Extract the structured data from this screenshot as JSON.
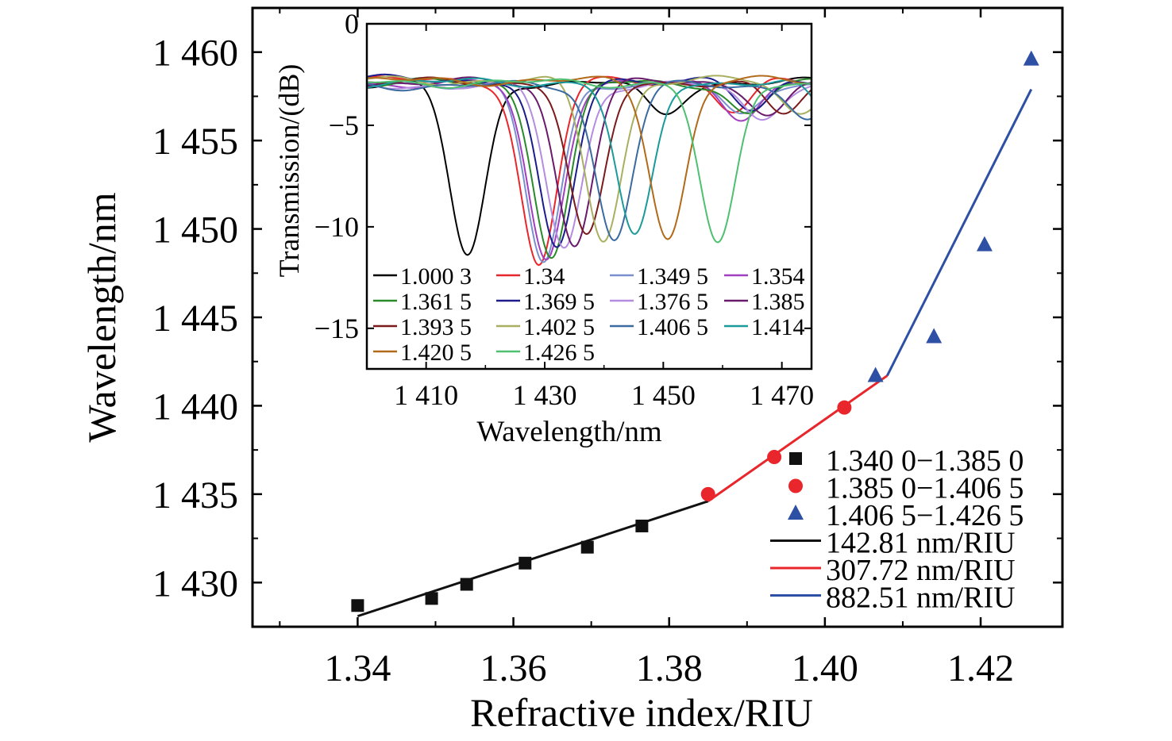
{
  "chart_data": [
    {
      "type": "scatter",
      "xlabel": "Refractive index/RIU",
      "ylabel": "Wavelength/nm",
      "xlim": [
        1.3265,
        1.4305
      ],
      "ylim": [
        1427.5,
        1462.5
      ],
      "xticks": [
        1.34,
        1.36,
        1.38,
        1.4,
        1.42
      ],
      "xtick_labels": [
        "1.34",
        "1.36",
        "1.38",
        "1.40",
        "1.42"
      ],
      "yticks": [
        1430,
        1435,
        1440,
        1445,
        1450,
        1455,
        1460
      ],
      "ytick_labels": [
        "1 430",
        "1 435",
        "1 440",
        "1 445",
        "1 450",
        "1 455",
        "1 460"
      ],
      "legend_position": "bottom-right",
      "series": [
        {
          "name": "1.340 0−1.385 0",
          "marker": "square",
          "color": "#111111",
          "x": [
            1.34,
            1.3495,
            1.354,
            1.3615,
            1.3695,
            1.3765
          ],
          "y": [
            1428.7,
            1429.1,
            1429.9,
            1431.1,
            1432.0,
            1433.2
          ]
        },
        {
          "name": "1.385 0−1.406 5",
          "marker": "circle",
          "color": "#e8262b",
          "x": [
            1.385,
            1.3935,
            1.4025
          ],
          "y": [
            1435.0,
            1437.1,
            1439.9
          ]
        },
        {
          "name": "1.406 5−1.426 5",
          "marker": "triangle",
          "color": "#2d50a5",
          "x": [
            1.4065,
            1.414,
            1.4205,
            1.4265
          ],
          "y": [
            1441.7,
            1443.9,
            1449.1,
            1459.6
          ]
        }
      ],
      "fits": [
        {
          "name": "142.81 nm/RIU",
          "color": "#111111",
          "x": [
            1.34,
            1.385
          ],
          "y": [
            1428.1,
            1434.6
          ]
        },
        {
          "name": "307.72 nm/RIU",
          "color": "#e8262b",
          "x": [
            1.385,
            1.408
          ],
          "y": [
            1434.6,
            1441.7
          ]
        },
        {
          "name": "882.51 nm/RIU",
          "color": "#2d50a5",
          "x": [
            1.408,
            1.4265
          ],
          "y": [
            1441.7,
            1457.9
          ]
        }
      ]
    },
    {
      "type": "line",
      "xlabel": "Wavelength/nm",
      "ylabel": "Transmission/(dB)",
      "xlim": [
        1400,
        1475
      ],
      "ylim": [
        -17,
        0
      ],
      "xticks": [
        1410,
        1430,
        1450,
        1470
      ],
      "xtick_labels": [
        "1 410",
        "1 430",
        "1 450",
        "1 470"
      ],
      "yticks": [
        0,
        -5,
        -10,
        -15
      ],
      "ytick_labels": [
        "0",
        "−5",
        "−10",
        "−15"
      ],
      "legend_position": "bottom",
      "series": [
        {
          "name": "1.000 3",
          "color": "#000000",
          "dip_wavelength": 1417,
          "dip_depth": -11.5
        },
        {
          "name": "1.34",
          "color": "#e8262b",
          "dip_wavelength": 1429,
          "dip_depth": -12.0
        },
        {
          "name": "1.349 5",
          "color": "#7b8fcf",
          "dip_wavelength": 1429.8,
          "dip_depth": -11.8
        },
        {
          "name": "1.354",
          "color": "#a040c0",
          "dip_wavelength": 1430.2,
          "dip_depth": -11.6
        },
        {
          "name": "1.361 5",
          "color": "#2a8a2a",
          "dip_wavelength": 1431.2,
          "dip_depth": -11.4
        },
        {
          "name": "1.369 5",
          "color": "#1c1c8c",
          "dip_wavelength": 1432.0,
          "dip_depth": -11.2
        },
        {
          "name": "1.376 5",
          "color": "#b48ce0",
          "dip_wavelength": 1433.3,
          "dip_depth": -11.0
        },
        {
          "name": "1.385",
          "color": "#6a1a6a",
          "dip_wavelength": 1435.0,
          "dip_depth": -10.8
        },
        {
          "name": "1.393 5",
          "color": "#7a1a1a",
          "dip_wavelength": 1437.1,
          "dip_depth": -10.6
        },
        {
          "name": "1.402 5",
          "color": "#a8b060",
          "dip_wavelength": 1439.9,
          "dip_depth": -10.6
        },
        {
          "name": "1.406 5",
          "color": "#3a6aa0",
          "dip_wavelength": 1441.7,
          "dip_depth": -10.6
        },
        {
          "name": "1.414",
          "color": "#1a9a9a",
          "dip_wavelength": 1445.2,
          "dip_depth": -10.6
        },
        {
          "name": "1.420 5",
          "color": "#b06a1a",
          "dip_wavelength": 1450.8,
          "dip_depth": -10.5
        },
        {
          "name": "1.426 5",
          "color": "#4ec070",
          "dip_wavelength": 1459.2,
          "dip_depth": -11.0
        }
      ]
    }
  ]
}
